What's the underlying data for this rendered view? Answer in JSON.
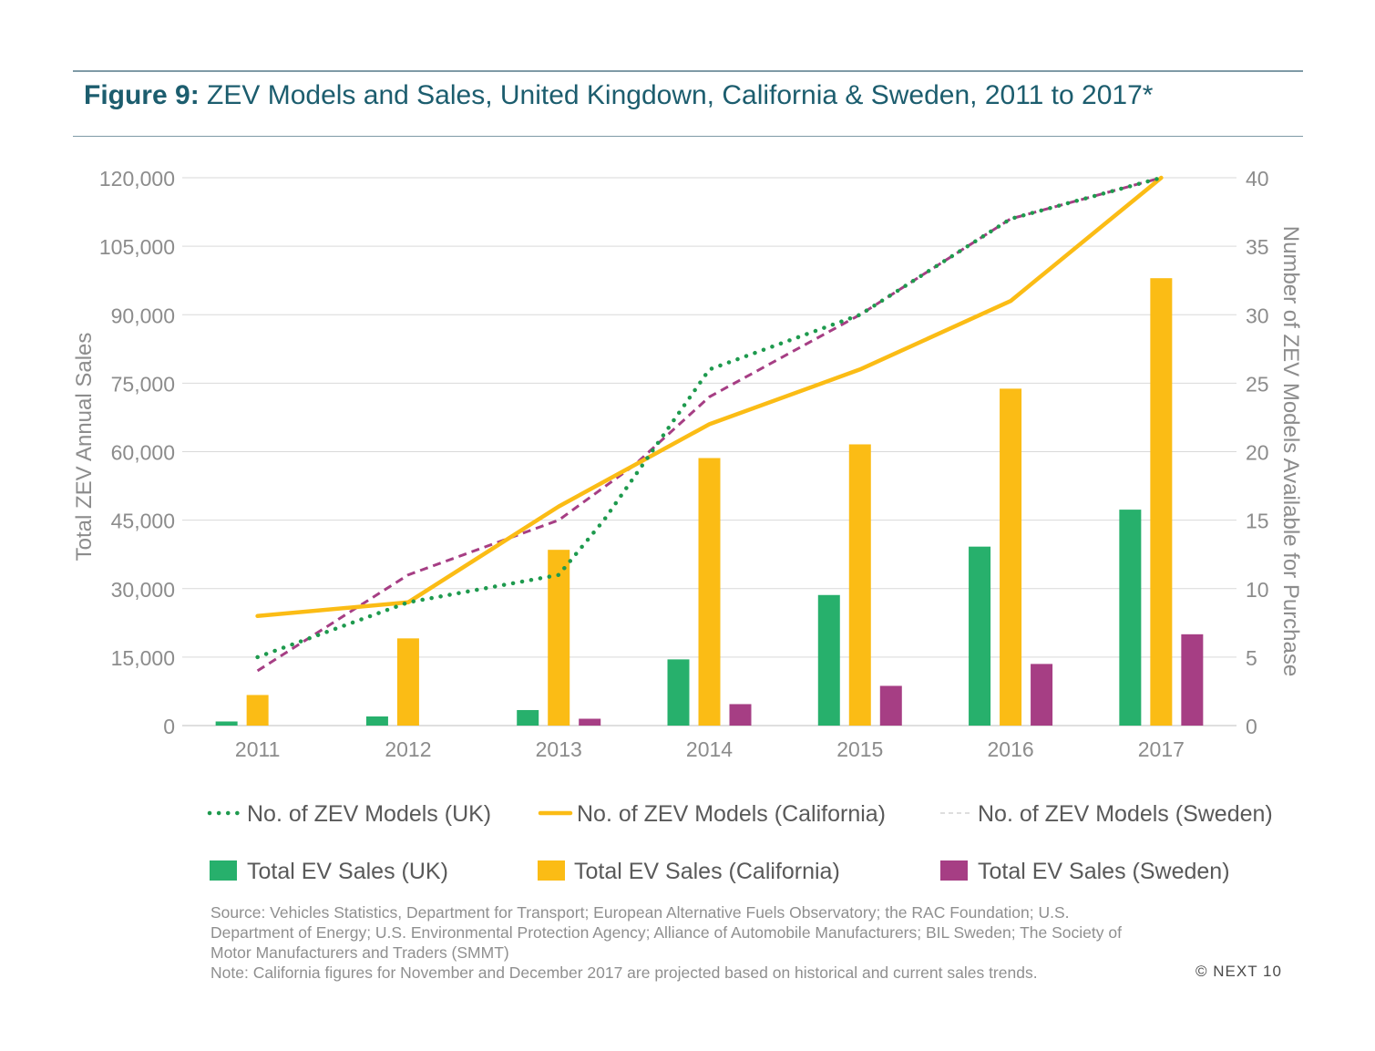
{
  "header": {
    "title_prefix": "Figure 9:",
    "title_text": "ZEV Models and Sales, United Kingdown, California & Sweden, 2011 to 2017*"
  },
  "chart_data": {
    "type": "bar",
    "title": "Figure 9: ZEV Models and Sales, United Kingdown, California & Sweden, 2011 to 2017*",
    "categories": [
      "2011",
      "2012",
      "2013",
      "2014",
      "2015",
      "2016",
      "2017"
    ],
    "ylabel": "Total ZEV Annual Sales",
    "y2label": "Number of ZEV Models Available for Purchase",
    "ylim": [
      0,
      120000
    ],
    "y2lim": [
      0,
      40
    ],
    "yticks": [
      "0",
      "15,000",
      "30,000",
      "45,000",
      "60,000",
      "75,000",
      "90,000",
      "105,000",
      "120,000"
    ],
    "y2ticks": [
      "0",
      "5",
      "10",
      "15",
      "20",
      "25",
      "30",
      "35",
      "40"
    ],
    "grid": true,
    "legend_position": "bottom",
    "bar_series": [
      {
        "name": "Total EV Sales (UK)",
        "color": "#27b06c",
        "values": [
          900,
          2000,
          3400,
          14500,
          28600,
          39200,
          47300
        ]
      },
      {
        "name": "Total EV Sales (California)",
        "color": "#fbbc15",
        "values": [
          6700,
          19100,
          38500,
          58600,
          61600,
          73800,
          98000
        ]
      },
      {
        "name": "Total EV Sales (Sweden)",
        "color": "#a63e84",
        "values": [
          0,
          0,
          1500,
          4700,
          8700,
          13500,
          20000
        ]
      }
    ],
    "line_series": [
      {
        "name": "No. of ZEV Models (UK)",
        "color": "#1e9a4e",
        "style": "dotted",
        "axis": "right",
        "points": [
          [
            0,
            5
          ],
          [
            1,
            9
          ],
          [
            2,
            11
          ],
          [
            2.3,
            15
          ],
          [
            3,
            26
          ],
          [
            4,
            30
          ],
          [
            5,
            37
          ],
          [
            6,
            40
          ]
        ]
      },
      {
        "name": "No. of ZEV Models (California)",
        "color": "#fbbc15",
        "style": "solid",
        "axis": "right",
        "points": [
          [
            0,
            8
          ],
          [
            1,
            9
          ],
          [
            2,
            16
          ],
          [
            3,
            22
          ],
          [
            4,
            26
          ],
          [
            5,
            31
          ],
          [
            6,
            40
          ]
        ]
      },
      {
        "name": "No. of ZEV Models (Sweden)",
        "color": "#a63e84",
        "style": "dashed",
        "axis": "right",
        "points": [
          [
            0,
            4
          ],
          [
            1,
            11
          ],
          [
            2,
            15
          ],
          [
            2.5,
            19
          ],
          [
            3,
            24
          ],
          [
            4,
            30
          ],
          [
            5,
            37
          ],
          [
            6,
            40
          ]
        ]
      }
    ]
  },
  "legend": {
    "items": [
      "No. of ZEV Models (UK)",
      "No. of ZEV Models (California)",
      "No. of ZEV Models (Sweden)",
      "Total EV Sales (UK)",
      "Total EV Sales (California)",
      "Total EV Sales (Sweden)"
    ]
  },
  "footnote": {
    "line1": "Source: Vehicles Statistics, Department for Transport; European Alternative Fuels Observatory; the RAC Foundation; U.S.",
    "line2": "Department of Energy; U.S. Environmental Protection Agency; Alliance of Automobile Manufacturers; BIL Sweden; The Society of",
    "line3": "Motor Manufacturers and Traders (SMMT)",
    "line4": "Note: California figures for November and December 2017 are projected based on historical and current sales trends."
  },
  "copyright": "© NEXT 10"
}
